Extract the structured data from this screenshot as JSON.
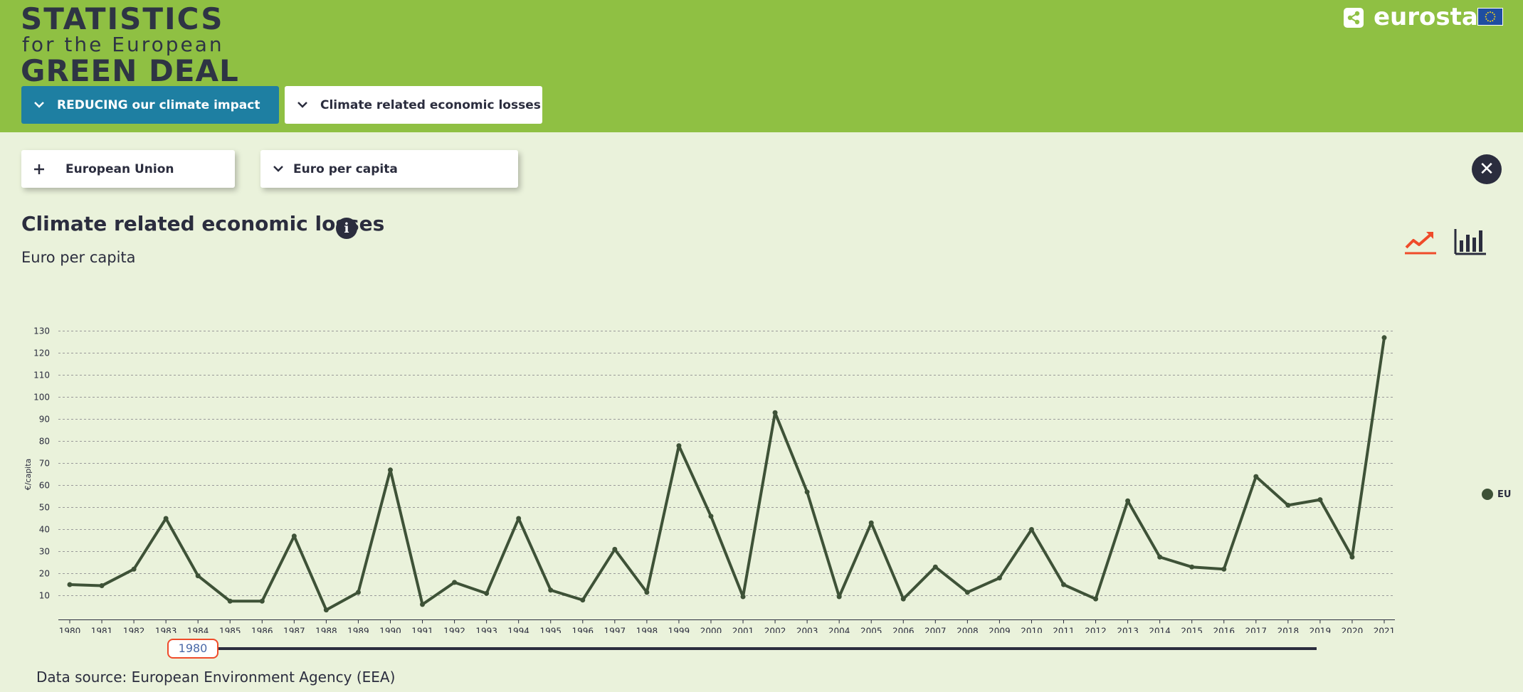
{
  "header": {
    "logo_line1": "STATISTICS",
    "logo_line2": "for the European",
    "logo_line3": "GREEN DEAL",
    "brand": "eurostat",
    "background_color": "#8fc043"
  },
  "nav": {
    "theme_label": "REDUCING our climate impact",
    "indicator_label": "Climate related economic losses",
    "theme_color": "#1e7fa2"
  },
  "filters": {
    "country_label": "European Union",
    "unit_label": "Euro per capita"
  },
  "main": {
    "title": "Climate related economic losses",
    "subtitle": "Euro per capita",
    "source": "Data source: European Environment Agency (EEA)"
  },
  "slider": {
    "start_label": "1980"
  },
  "icons": {
    "share": "share-icon",
    "flag": "eu-flag-icon",
    "chevron": "chevron-down-icon",
    "plus": "plus-icon",
    "close": "close-icon",
    "info": "info-icon",
    "line_view": "line-chart-icon",
    "bar_view": "bar-chart-icon"
  },
  "colors": {
    "line": "#3e5237",
    "active_view": "#ef4b2a",
    "text": "#2b2d3e"
  },
  "chart_data": {
    "type": "line",
    "ylabel": "€/capita",
    "yticks": [
      10,
      20,
      30,
      40,
      50,
      60,
      70,
      80,
      90,
      100,
      110,
      120,
      130
    ],
    "ylim": [
      0,
      132
    ],
    "grid": true,
    "legend_position": "right",
    "x": [
      "1980",
      "1981",
      "1982",
      "1983",
      "1984",
      "1985",
      "1986",
      "1987",
      "1988",
      "1989",
      "1990",
      "1991",
      "1992",
      "1993",
      "1994",
      "1995",
      "1996",
      "1997",
      "1998",
      "1999",
      "2000",
      "2001",
      "2002",
      "2003",
      "2004",
      "2005",
      "2006",
      "2007",
      "2008",
      "2009",
      "2010",
      "2011",
      "2012",
      "2013",
      "2014",
      "2015",
      "2016",
      "2017",
      "2018",
      "2019",
      "2020",
      "2021"
    ],
    "series": [
      {
        "name": "EU",
        "color": "#3e5237",
        "values": [
          15,
          14.5,
          22,
          45,
          19,
          7.5,
          7.5,
          37,
          3.5,
          11.5,
          67,
          6,
          16,
          11,
          45,
          12.5,
          8,
          31,
          11.5,
          78,
          46,
          9.5,
          93,
          57,
          9.5,
          43,
          8.5,
          23,
          11.5,
          18,
          40,
          15,
          8.5,
          53,
          27.5,
          23,
          22,
          64,
          51,
          53.5,
          27.5,
          127
        ]
      }
    ]
  }
}
